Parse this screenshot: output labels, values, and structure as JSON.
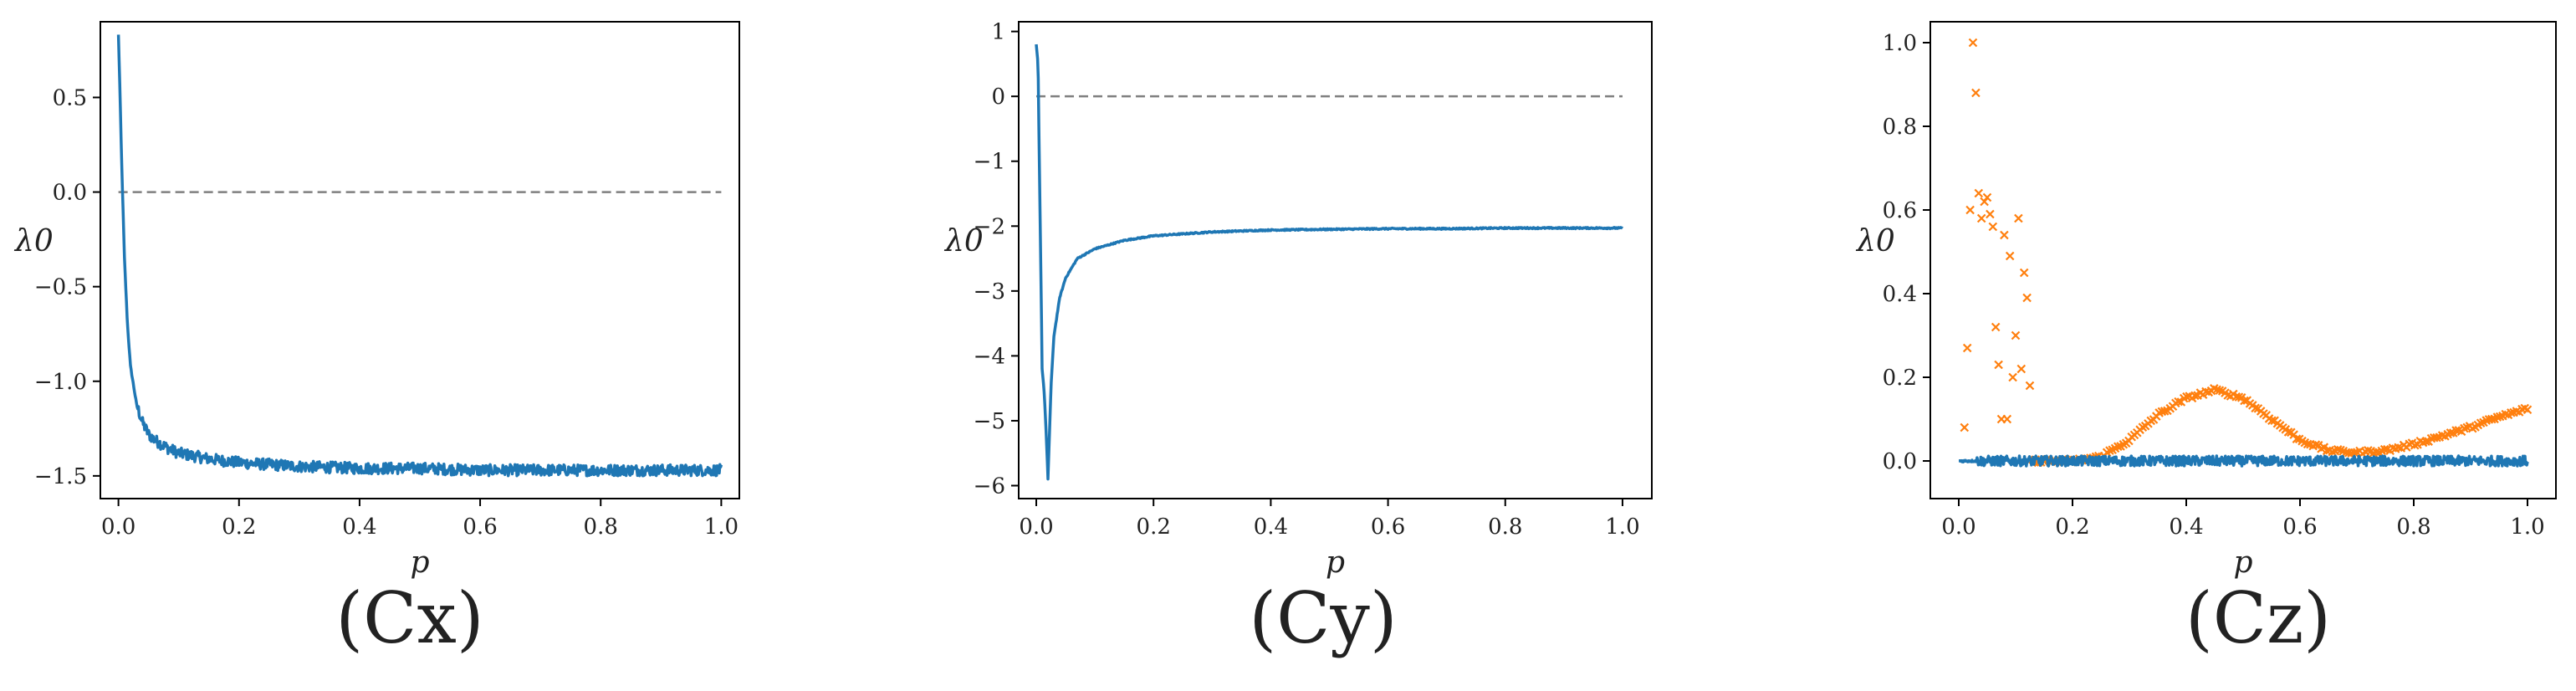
{
  "figure": {
    "captions": [
      "(Cx)",
      "(Cy)",
      "(Cz)"
    ]
  },
  "colors": {
    "series_blue": "#1f77b4",
    "series_orange": "#ff7f0e",
    "reference_line": "#7f7f7f"
  },
  "chart_data": [
    {
      "type": "line",
      "caption": "(Cx)",
      "xlabel": "p",
      "ylabel": "λ0",
      "xlim": [
        -0.03,
        1.03
      ],
      "ylim": [
        -1.62,
        0.9
      ],
      "xticks": [
        0.0,
        0.2,
        0.4,
        0.6,
        0.8,
        1.0
      ],
      "xtick_labels": [
        "0.0",
        "0.2",
        "0.4",
        "0.6",
        "0.8",
        "1.0"
      ],
      "yticks": [
        -1.5,
        -1.0,
        -0.5,
        0.0,
        0.5
      ],
      "ytick_labels": [
        "−1.5",
        "−1.0",
        "−0.5",
        "0.0",
        "0.5"
      ],
      "grid": false,
      "reference_line": {
        "y": 0.0,
        "x_range": [
          0.0,
          1.0
        ],
        "style": "dashed"
      },
      "series": [
        {
          "style": "line",
          "color": "#1f77b4",
          "x": [
            0.0,
            0.002,
            0.005,
            0.01,
            0.015,
            0.02,
            0.03,
            0.04,
            0.05,
            0.06,
            0.08,
            0.1,
            0.15,
            0.2,
            0.3,
            0.4,
            0.5,
            0.6,
            0.7,
            0.8,
            0.9,
            1.0
          ],
          "y": [
            0.83,
            0.6,
            0.2,
            -0.35,
            -0.7,
            -0.92,
            -1.12,
            -1.22,
            -1.28,
            -1.31,
            -1.35,
            -1.38,
            -1.41,
            -1.43,
            -1.45,
            -1.46,
            -1.46,
            -1.47,
            -1.47,
            -1.47,
            -1.47,
            -1.47
          ],
          "noise": 0.03
        }
      ]
    },
    {
      "type": "line",
      "caption": "(Cy)",
      "xlabel": "p",
      "ylabel": "λ0",
      "xlim": [
        -0.03,
        1.05
      ],
      "ylim": [
        -6.2,
        1.15
      ],
      "xticks": [
        0.0,
        0.2,
        0.4,
        0.6,
        0.8,
        1.0
      ],
      "xtick_labels": [
        "0.0",
        "0.2",
        "0.4",
        "0.6",
        "0.8",
        "1.0"
      ],
      "yticks": [
        -6,
        -5,
        -4,
        -3,
        -2,
        -1,
        0,
        1
      ],
      "ytick_labels": [
        "−6",
        "−5",
        "−4",
        "−3",
        "−2",
        "−1",
        "0",
        "1"
      ],
      "grid": false,
      "reference_line": {
        "y": 0.0,
        "x_range": [
          0.0,
          1.0
        ],
        "style": "dashed"
      },
      "series": [
        {
          "style": "line",
          "color": "#1f77b4",
          "x": [
            0.0,
            0.003,
            0.006,
            0.01,
            0.013,
            0.016,
            0.02,
            0.025,
            0.03,
            0.04,
            0.05,
            0.07,
            0.1,
            0.15,
            0.2,
            0.3,
            0.4,
            0.5,
            0.6,
            0.7,
            0.8,
            0.9,
            1.0
          ],
          "y": [
            0.8,
            0.5,
            -1.5,
            -4.2,
            -4.5,
            -5.0,
            -5.9,
            -4.5,
            -3.7,
            -3.1,
            -2.8,
            -2.5,
            -2.35,
            -2.22,
            -2.15,
            -2.09,
            -2.06,
            -2.05,
            -2.04,
            -2.04,
            -2.03,
            -2.03,
            -2.03
          ],
          "noise": 0.01
        }
      ]
    },
    {
      "type": "scatter",
      "caption": "(Cz)",
      "xlabel": "p",
      "ylabel": "λ0",
      "xlim": [
        -0.05,
        1.05
      ],
      "ylim": [
        -0.09,
        1.05
      ],
      "xticks": [
        0.0,
        0.2,
        0.4,
        0.6,
        0.8,
        1.0
      ],
      "xtick_labels": [
        "0.0",
        "0.2",
        "0.4",
        "0.6",
        "0.8",
        "1.0"
      ],
      "yticks": [
        0.0,
        0.2,
        0.4,
        0.6,
        0.8,
        1.0
      ],
      "ytick_labels": [
        "0.0",
        "0.2",
        "0.4",
        "0.6",
        "0.8",
        "1.0"
      ],
      "grid": false,
      "series": [
        {
          "style": "markers-x",
          "color": "#ff7f0e",
          "x": [
            0.01,
            0.015,
            0.02,
            0.025,
            0.03,
            0.035,
            0.04,
            0.045,
            0.05,
            0.055,
            0.06,
            0.065,
            0.07,
            0.075,
            0.08,
            0.085,
            0.09,
            0.095,
            0.1,
            0.105,
            0.11,
            0.115,
            0.12,
            0.125
          ],
          "y": [
            0.08,
            0.27,
            0.6,
            1.0,
            0.88,
            0.64,
            0.58,
            0.62,
            0.63,
            0.59,
            0.56,
            0.32,
            0.23,
            0.1,
            0.54,
            0.1,
            0.49,
            0.2,
            0.3,
            0.58,
            0.22,
            0.45,
            0.39,
            0.18
          ],
          "curve_x": [
            0.13,
            0.2,
            0.25,
            0.3,
            0.35,
            0.4,
            0.45,
            0.5,
            0.55,
            0.6,
            0.65,
            0.7,
            0.75,
            0.8,
            0.85,
            0.9,
            0.95,
            1.0
          ],
          "curve_y": [
            0.0,
            0.0,
            0.01,
            0.05,
            0.11,
            0.15,
            0.17,
            0.15,
            0.1,
            0.05,
            0.025,
            0.02,
            0.025,
            0.04,
            0.06,
            0.08,
            0.105,
            0.125
          ]
        },
        {
          "style": "line",
          "color": "#1f77b4",
          "x": [
            0.0,
            0.1,
            0.2,
            0.3,
            0.4,
            0.5,
            0.6,
            0.7,
            0.8,
            0.9,
            1.0
          ],
          "y": [
            0.0,
            0.0,
            0.0,
            0.0,
            0.0,
            0.0,
            0.0,
            0.0,
            0.0,
            0.0,
            0.0
          ],
          "noise": 0.012
        }
      ]
    }
  ]
}
